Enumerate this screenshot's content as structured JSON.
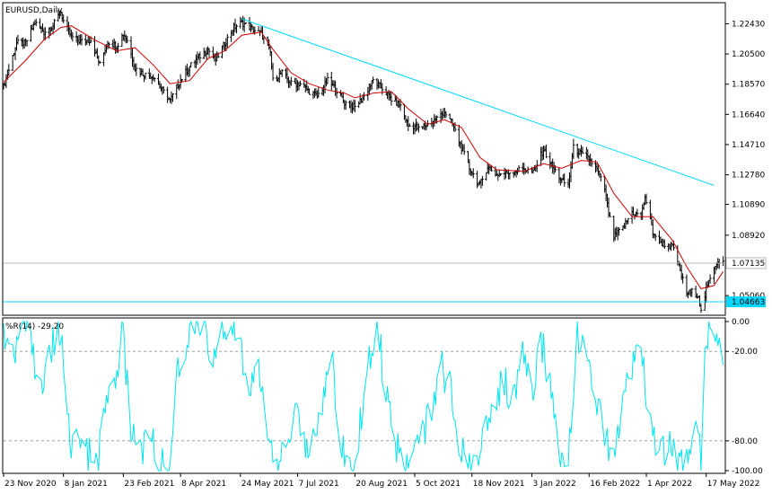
{
  "chart_data": [
    {
      "type": "candlestick",
      "title": "EURUSD,Daily",
      "symbol": "EURUSD",
      "timeframe": "Daily",
      "ylim": [
        1.0386,
        1.2372
      ],
      "y_ticks": [
        1.2243,
        1.205,
        1.1857,
        1.1664,
        1.1471,
        1.1278,
        1.1089,
        1.0892,
        1.0713,
        1.0506
      ],
      "y_tick_labels": [
        "1.22430",
        "1.20500",
        "1.18570",
        "1.16640",
        "1.14710",
        "1.12780",
        "1.10890",
        "1.08920",
        "1.07135",
        "1.05060"
      ],
      "price_labels": {
        "current": "1.07135",
        "support": "1.04663"
      },
      "support_level": 1.04663,
      "current_price": 1.07135,
      "trendline": {
        "from": [
          "2021-05-25",
          1.2275
        ],
        "to": [
          "2022-05-23",
          1.121
        ]
      },
      "moving_average_color": "#d00000",
      "bar_color": "#000000",
      "trendline_color": "#00d8ff",
      "support_color": "#00d8ff",
      "grid": false,
      "close_path": [
        [
          "2020-11-23",
          1.184
        ],
        [
          "2020-11-26",
          1.192
        ],
        [
          "2020-12-03",
          1.212
        ],
        [
          "2020-12-10",
          1.212
        ],
        [
          "2020-12-17",
          1.225
        ],
        [
          "2020-12-24",
          1.219
        ],
        [
          "2020-12-31",
          1.223
        ],
        [
          "2021-01-06",
          1.232
        ],
        [
          "2021-01-08",
          1.226
        ],
        [
          "2021-01-14",
          1.216
        ],
        [
          "2021-01-21",
          1.213
        ],
        [
          "2021-01-29",
          1.214
        ],
        [
          "2021-02-05",
          1.198
        ],
        [
          "2021-02-11",
          1.213
        ],
        [
          "2021-02-18",
          1.21
        ],
        [
          "2021-02-23",
          1.218
        ],
        [
          "2021-02-26",
          1.214
        ],
        [
          "2021-03-04",
          1.196
        ],
        [
          "2021-03-11",
          1.192
        ],
        [
          "2021-03-18",
          1.191
        ],
        [
          "2021-03-24",
          1.183
        ],
        [
          "2021-03-31",
          1.175
        ],
        [
          "2021-04-07",
          1.187
        ],
        [
          "2021-04-15",
          1.197
        ],
        [
          "2021-04-22",
          1.203
        ],
        [
          "2021-04-29",
          1.208
        ],
        [
          "2021-05-05",
          1.201
        ],
        [
          "2021-05-12",
          1.212
        ],
        [
          "2021-05-19",
          1.222
        ],
        [
          "2021-05-25",
          1.225
        ],
        [
          "2021-06-02",
          1.221
        ],
        [
          "2021-06-09",
          1.218
        ],
        [
          "2021-06-16",
          1.206
        ],
        [
          "2021-06-18",
          1.188
        ],
        [
          "2021-06-25",
          1.193
        ],
        [
          "2021-07-02",
          1.186
        ],
        [
          "2021-07-09",
          1.186
        ],
        [
          "2021-07-16",
          1.181
        ],
        [
          "2021-07-22",
          1.178
        ],
        [
          "2021-07-30",
          1.188
        ],
        [
          "2021-08-05",
          1.183
        ],
        [
          "2021-08-12",
          1.174
        ],
        [
          "2021-08-20",
          1.171
        ],
        [
          "2021-08-27",
          1.178
        ],
        [
          "2021-09-03",
          1.188
        ],
        [
          "2021-09-10",
          1.183
        ],
        [
          "2021-09-17",
          1.176
        ],
        [
          "2021-09-24",
          1.172
        ],
        [
          "2021-09-30",
          1.159
        ],
        [
          "2021-10-05",
          1.159
        ],
        [
          "2021-10-08",
          1.157
        ],
        [
          "2021-10-15",
          1.16
        ],
        [
          "2021-10-22",
          1.164
        ],
        [
          "2021-10-28",
          1.168
        ],
        [
          "2021-11-03",
          1.16
        ],
        [
          "2021-11-10",
          1.145
        ],
        [
          "2021-11-16",
          1.132
        ],
        [
          "2021-11-24",
          1.121
        ],
        [
          "2021-11-30",
          1.133
        ],
        [
          "2021-12-07",
          1.128
        ],
        [
          "2021-12-14",
          1.129
        ],
        [
          "2021-12-21",
          1.13
        ],
        [
          "2021-12-28",
          1.132
        ],
        [
          "2022-01-04",
          1.129
        ],
        [
          "2022-01-12",
          1.144
        ],
        [
          "2022-01-18",
          1.134
        ],
        [
          "2022-01-26",
          1.124
        ],
        [
          "2022-01-31",
          1.121
        ],
        [
          "2022-02-04",
          1.145
        ],
        [
          "2022-02-10",
          1.141
        ],
        [
          "2022-02-16",
          1.138
        ],
        [
          "2022-02-22",
          1.131
        ],
        [
          "2022-02-28",
          1.119
        ],
        [
          "2022-03-03",
          1.103
        ],
        [
          "2022-03-07",
          1.088
        ],
        [
          "2022-03-14",
          1.094
        ],
        [
          "2022-03-21",
          1.104
        ],
        [
          "2022-03-28",
          1.101
        ],
        [
          "2022-03-31",
          1.114
        ],
        [
          "2022-04-06",
          1.091
        ],
        [
          "2022-04-13",
          1.084
        ],
        [
          "2022-04-21",
          1.082
        ],
        [
          "2022-04-26",
          1.069
        ],
        [
          "2022-05-02",
          1.052
        ],
        [
          "2022-05-06",
          1.053
        ],
        [
          "2022-05-11",
          1.051
        ],
        [
          "2022-05-13",
          1.04
        ],
        [
          "2022-05-17",
          1.054
        ],
        [
          "2022-05-23",
          1.069
        ],
        [
          "2022-05-26",
          1.073
        ],
        [
          "2022-05-30",
          1.072
        ]
      ],
      "ma_path": [
        [
          "2020-11-23",
          1.187
        ],
        [
          "2020-12-10",
          1.201
        ],
        [
          "2020-12-24",
          1.214
        ],
        [
          "2021-01-06",
          1.222
        ],
        [
          "2021-01-14",
          1.223
        ],
        [
          "2021-02-01",
          1.214
        ],
        [
          "2021-02-18",
          1.207
        ],
        [
          "2021-03-04",
          1.209
        ],
        [
          "2021-03-18",
          1.198
        ],
        [
          "2021-03-31",
          1.186
        ],
        [
          "2021-04-15",
          1.188
        ],
        [
          "2021-04-29",
          1.202
        ],
        [
          "2021-05-12",
          1.207
        ],
        [
          "2021-05-25",
          1.217
        ],
        [
          "2021-06-09",
          1.219
        ],
        [
          "2021-06-18",
          1.208
        ],
        [
          "2021-07-02",
          1.193
        ],
        [
          "2021-07-16",
          1.186
        ],
        [
          "2021-07-30",
          1.182
        ],
        [
          "2021-08-12",
          1.18
        ],
        [
          "2021-08-20",
          1.177
        ],
        [
          "2021-09-03",
          1.18
        ],
        [
          "2021-09-17",
          1.181
        ],
        [
          "2021-09-30",
          1.17
        ],
        [
          "2021-10-15",
          1.16
        ],
        [
          "2021-10-28",
          1.163
        ],
        [
          "2021-11-10",
          1.158
        ],
        [
          "2021-11-24",
          1.139
        ],
        [
          "2021-12-07",
          1.131
        ],
        [
          "2021-12-28",
          1.13
        ],
        [
          "2022-01-12",
          1.135
        ],
        [
          "2022-01-26",
          1.132
        ],
        [
          "2022-02-10",
          1.137
        ],
        [
          "2022-02-22",
          1.136
        ],
        [
          "2022-03-07",
          1.116
        ],
        [
          "2022-03-21",
          1.101
        ],
        [
          "2022-04-06",
          1.101
        ],
        [
          "2022-04-21",
          1.086
        ],
        [
          "2022-05-02",
          1.069
        ],
        [
          "2022-05-13",
          1.055
        ],
        [
          "2022-05-23",
          1.057
        ],
        [
          "2022-05-30",
          1.066
        ]
      ]
    },
    {
      "type": "line",
      "title": "%R(14) -29.20",
      "indicator": "Williams %R",
      "period": 14,
      "last_value": -29.2,
      "ylim": [
        -100,
        0
      ],
      "y_ticks": [
        0,
        -20,
        -80,
        -100
      ],
      "y_tick_labels": [
        "0.00",
        "-20.00",
        "-80.00",
        "-100.00"
      ],
      "levels": [
        -20,
        -80
      ],
      "line_color": "#00e5f0",
      "path": [
        [
          "2020-11-23",
          -10
        ],
        [
          "2020-11-30",
          -25
        ],
        [
          "2020-12-07",
          -5
        ],
        [
          "2020-12-14",
          -15
        ],
        [
          "2020-12-21",
          -45
        ],
        [
          "2020-12-28",
          -20
        ],
        [
          "2021-01-06",
          -5
        ],
        [
          "2021-01-13",
          -85
        ],
        [
          "2021-01-20",
          -75
        ],
        [
          "2021-01-27",
          -90
        ],
        [
          "2021-02-03",
          -95
        ],
        [
          "2021-02-10",
          -60
        ],
        [
          "2021-02-17",
          -40
        ],
        [
          "2021-02-22",
          -5
        ],
        [
          "2021-03-01",
          -70
        ],
        [
          "2021-03-08",
          -90
        ],
        [
          "2021-03-15",
          -75
        ],
        [
          "2021-03-22",
          -95
        ],
        [
          "2021-03-29",
          -100
        ],
        [
          "2021-04-05",
          -40
        ],
        [
          "2021-04-12",
          -15
        ],
        [
          "2021-04-19",
          -5
        ],
        [
          "2021-04-26",
          0
        ],
        [
          "2021-05-03",
          -30
        ],
        [
          "2021-05-10",
          -10
        ],
        [
          "2021-05-17",
          -5
        ],
        [
          "2021-05-24",
          -15
        ],
        [
          "2021-05-31",
          -45
        ],
        [
          "2021-06-07",
          -35
        ],
        [
          "2021-06-14",
          -70
        ],
        [
          "2021-06-21",
          -95
        ],
        [
          "2021-06-28",
          -80
        ],
        [
          "2021-07-05",
          -60
        ],
        [
          "2021-07-12",
          -85
        ],
        [
          "2021-07-19",
          -75
        ],
        [
          "2021-07-26",
          -55
        ],
        [
          "2021-08-02",
          -20
        ],
        [
          "2021-08-09",
          -80
        ],
        [
          "2021-08-16",
          -100
        ],
        [
          "2021-08-23",
          -75
        ],
        [
          "2021-08-30",
          -30
        ],
        [
          "2021-09-06",
          0
        ],
        [
          "2021-09-13",
          -50
        ],
        [
          "2021-09-20",
          -80
        ],
        [
          "2021-09-27",
          -95
        ],
        [
          "2021-10-04",
          -90
        ],
        [
          "2021-10-11",
          -75
        ],
        [
          "2021-10-18",
          -55
        ],
        [
          "2021-10-25",
          -30
        ],
        [
          "2021-11-01",
          -45
        ],
        [
          "2021-11-08",
          -85
        ],
        [
          "2021-11-15",
          -95
        ],
        [
          "2021-11-22",
          -100
        ],
        [
          "2021-11-29",
          -70
        ],
        [
          "2021-12-06",
          -50
        ],
        [
          "2021-12-13",
          -40
        ],
        [
          "2021-12-20",
          -55
        ],
        [
          "2021-12-27",
          -25
        ],
        [
          "2022-01-03",
          -50
        ],
        [
          "2022-01-10",
          -10
        ],
        [
          "2022-01-17",
          -45
        ],
        [
          "2022-01-24",
          -85
        ],
        [
          "2022-01-31",
          -95
        ],
        [
          "2022-02-07",
          -10
        ],
        [
          "2022-02-14",
          -25
        ],
        [
          "2022-02-21",
          -45
        ],
        [
          "2022-02-28",
          -80
        ],
        [
          "2022-03-07",
          -95
        ],
        [
          "2022-03-14",
          -55
        ],
        [
          "2022-03-21",
          -35
        ],
        [
          "2022-03-28",
          -20
        ],
        [
          "2022-04-04",
          -75
        ],
        [
          "2022-04-11",
          -90
        ],
        [
          "2022-04-18",
          -85
        ],
        [
          "2022-04-25",
          -95
        ],
        [
          "2022-05-02",
          -90
        ],
        [
          "2022-05-09",
          -60
        ],
        [
          "2022-05-13",
          -95
        ],
        [
          "2022-05-16",
          -30
        ],
        [
          "2022-05-19",
          -5
        ],
        [
          "2022-05-23",
          -15
        ],
        [
          "2022-05-26",
          -5
        ],
        [
          "2022-05-30",
          -29.2
        ]
      ]
    }
  ],
  "x_axis": {
    "ticks": [
      "2020-11-23",
      "2021-01-08",
      "2021-02-23",
      "2021-04-08",
      "2021-05-24",
      "2021-07-07",
      "2021-08-20",
      "2021-10-05",
      "2021-11-18",
      "2022-01-03",
      "2022-02-16",
      "2022-04-01",
      "2022-05-17"
    ],
    "tick_labels": [
      "23 Nov 2020",
      "8 Jan 2021",
      "23 Feb 2021",
      "8 Apr 2021",
      "24 May 2021",
      "7 Jul 2021",
      "20 Aug 2021",
      "5 Oct 2021",
      "18 Nov 2021",
      "3 Jan 2022",
      "16 Feb 2022",
      "1 Apr 2022",
      "17 May 2022"
    ]
  }
}
